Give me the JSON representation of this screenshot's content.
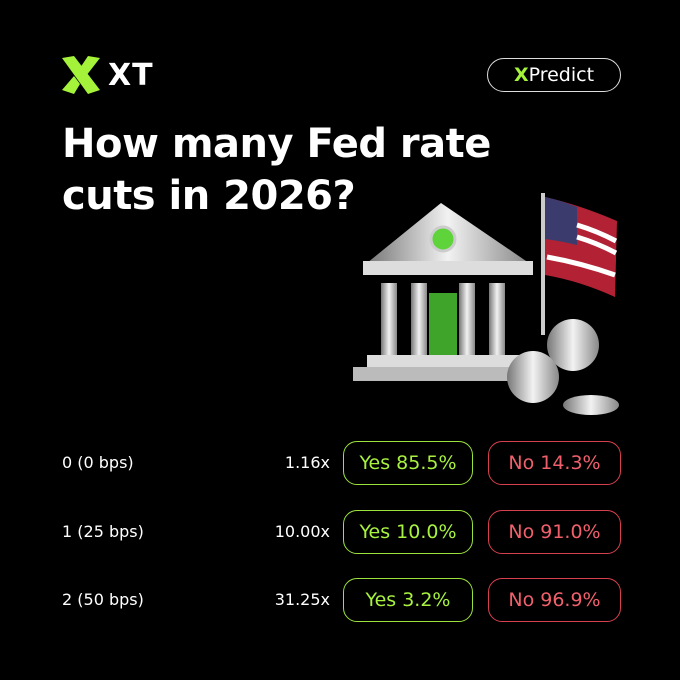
{
  "brand": {
    "name": "XT"
  },
  "badge": {
    "accent": "X",
    "text": "Predict"
  },
  "title": {
    "lines": [
      "How many Fed rate",
      "cuts in 2026?"
    ]
  },
  "table": {
    "rows": [
      {
        "label": "0 (0 bps)",
        "multiplier": "1.16x",
        "yes": "Yes 85.5%",
        "no": "No 14.3%"
      },
      {
        "label": "1 (25 bps)",
        "multiplier": "10.00x",
        "yes": "Yes 10.0%",
        "no": "No 91.0%"
      },
      {
        "label": "2 (50 bps)",
        "multiplier": "31.25x",
        "yes": "Yes 3.2%",
        "no": "No 96.9%"
      }
    ]
  }
}
